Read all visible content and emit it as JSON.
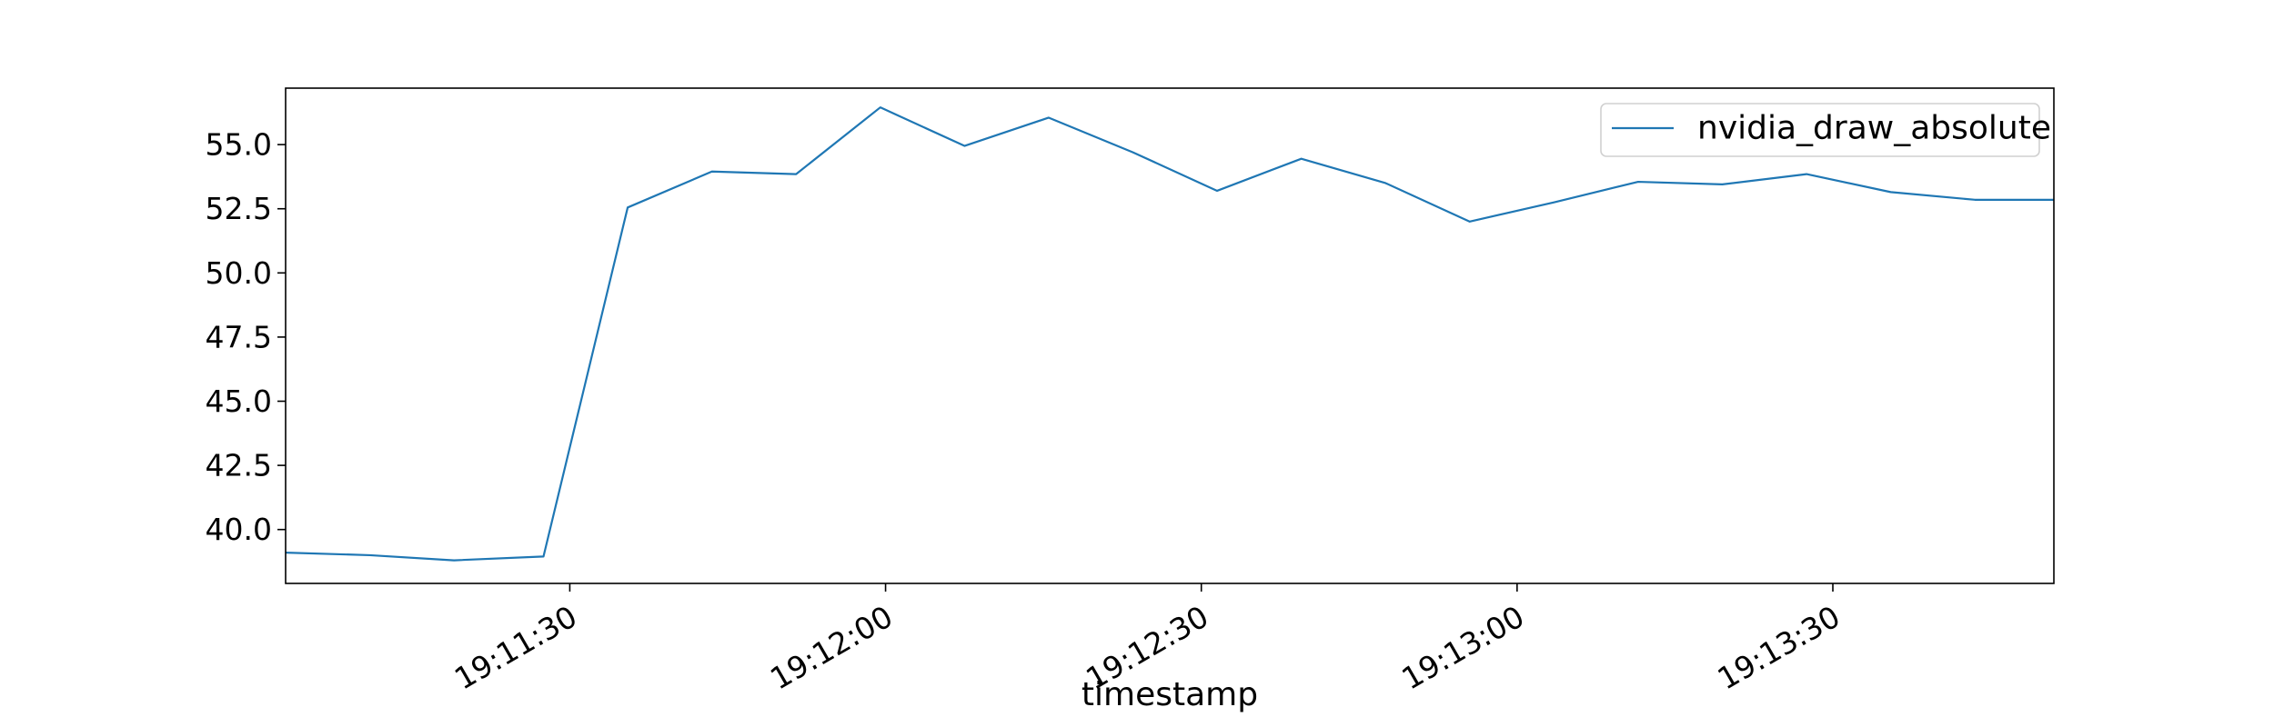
{
  "chart_data": {
    "type": "line",
    "title": "",
    "xlabel": "timestamp",
    "ylabel": "",
    "ylim": [
      37.9,
      57.2
    ],
    "xlim_seconds": [
      63.0,
      231.0
    ],
    "series_colors": [
      "#1f77b4"
    ],
    "x_ticks": [
      {
        "label": "19:11:30",
        "seconds": 90
      },
      {
        "label": "19:12:00",
        "seconds": 120
      },
      {
        "label": "19:12:30",
        "seconds": 150
      },
      {
        "label": "19:13:00",
        "seconds": 180
      },
      {
        "label": "19:13:30",
        "seconds": 210
      }
    ],
    "y_ticks": [
      {
        "label": "40.0",
        "value": 40.0
      },
      {
        "label": "42.5",
        "value": 42.5
      },
      {
        "label": "45.0",
        "value": 45.0
      },
      {
        "label": "47.5",
        "value": 47.5
      },
      {
        "label": "50.0",
        "value": 50.0
      },
      {
        "label": "52.5",
        "value": 52.5
      },
      {
        "label": "55.0",
        "value": 55.0
      }
    ],
    "series": [
      {
        "name": "nvidia_draw_absolute",
        "x_seconds": [
          63.0,
          71.0,
          79.0,
          87.5,
          95.5,
          103.5,
          111.5,
          119.5,
          127.5,
          135.5,
          143.5,
          151.5,
          159.5,
          167.5,
          175.5,
          183.5,
          191.5,
          199.5,
          207.5,
          215.5,
          223.5,
          231.0
        ],
        "values": [
          39.1,
          39.0,
          38.8,
          38.95,
          52.55,
          53.95,
          53.85,
          56.45,
          54.95,
          56.05,
          54.7,
          53.2,
          54.45,
          53.5,
          52.0,
          52.75,
          53.55,
          53.45,
          53.85,
          53.15,
          52.85,
          52.85
        ]
      }
    ],
    "legend": {
      "position": "top-right",
      "entries": [
        "nvidia_draw_absolute"
      ]
    }
  }
}
